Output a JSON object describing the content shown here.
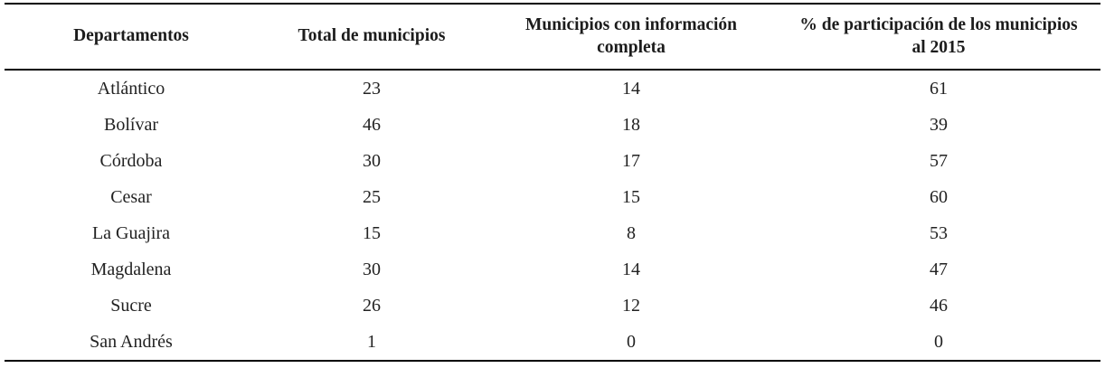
{
  "table": {
    "columns": [
      "Departamentos",
      "Total de municipios",
      "Municipios con información completa",
      "% de participación de los municipios al 2015"
    ],
    "rows": [
      [
        "Atlántico",
        "23",
        "14",
        "61"
      ],
      [
        "Bolívar",
        "46",
        "18",
        "39"
      ],
      [
        "Córdoba",
        "30",
        "17",
        "57"
      ],
      [
        "Cesar",
        "25",
        "15",
        "60"
      ],
      [
        "La Guajira",
        "15",
        "8",
        "53"
      ],
      [
        "Magdalena",
        "30",
        "14",
        "47"
      ],
      [
        "Sucre",
        "26",
        "12",
        "46"
      ],
      [
        "San Andrés",
        "1",
        "0",
        "0"
      ]
    ],
    "colors": {
      "rule": "#000000",
      "text": "#1c1c1c",
      "background": "#ffffff"
    }
  }
}
